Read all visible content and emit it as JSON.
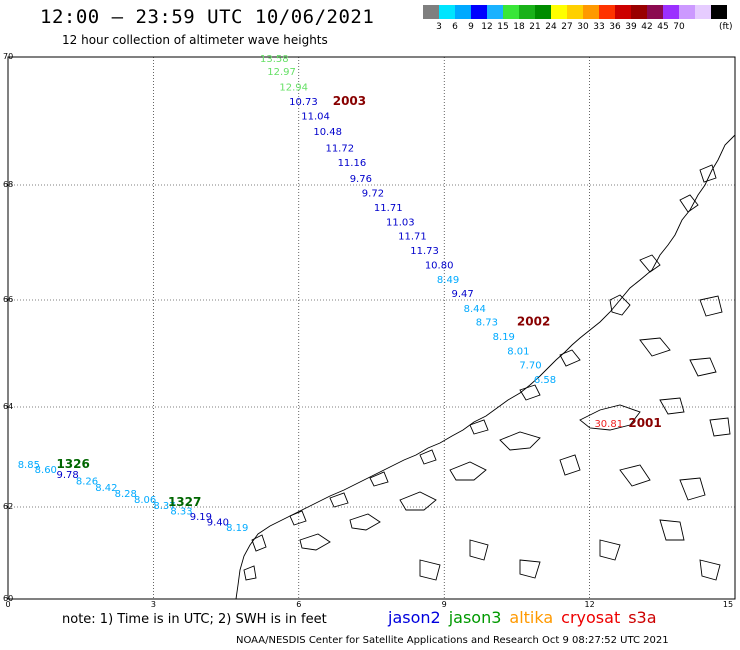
{
  "header": {
    "title": "12:00 – 23:59 UTC 10/06/2021",
    "subtitle": "12 hour collection of altimeter wave heights"
  },
  "colorbar": {
    "colors": [
      "#7f7f7f",
      "#00e5ff",
      "#00a9ff",
      "#0000ff",
      "#1ab2ff",
      "#39e639",
      "#19b219",
      "#008c00",
      "#ffff00",
      "#ffd000",
      "#ff9900",
      "#ff3300",
      "#cc0000",
      "#990000",
      "#8b0a50",
      "#9b30ff",
      "#cc99ff",
      "#e6ccff",
      "#000000"
    ],
    "labels": [
      "3",
      "6",
      "9",
      "12",
      "15",
      "18",
      "21",
      "24",
      "27",
      "30",
      "33",
      "36",
      "39",
      "42",
      "45",
      "70"
    ],
    "unit": "(ft)"
  },
  "map": {
    "lon_range": [
      0,
      15
    ],
    "lat_range": [
      60,
      70
    ],
    "y_ticks": [
      "70",
      "68",
      "66",
      "64",
      "62",
      "60"
    ],
    "x_ticks": [
      "0",
      "3",
      "6",
      "9",
      "12",
      "15"
    ],
    "observations": [
      {
        "lon": 5.2,
        "lat": 69.92,
        "value": "13.58",
        "color": "#66e066"
      },
      {
        "lon": 5.35,
        "lat": 69.72,
        "value": "12.97",
        "color": "#66e066"
      },
      {
        "lon": 5.6,
        "lat": 69.48,
        "value": "12.94",
        "color": "#66e066"
      },
      {
        "lon": 5.8,
        "lat": 69.25,
        "value": "10.73",
        "color": "#0000cc"
      },
      {
        "lon": 6.05,
        "lat": 69.02,
        "value": "11.04",
        "color": "#0000cc"
      },
      {
        "lon": 6.3,
        "lat": 68.78,
        "value": "10.48",
        "color": "#0000cc"
      },
      {
        "lon": 6.55,
        "lat": 68.52,
        "value": "11.72",
        "color": "#0000cc"
      },
      {
        "lon": 6.8,
        "lat": 68.3,
        "value": "11.16",
        "color": "#0000cc"
      },
      {
        "lon": 7.05,
        "lat": 68.05,
        "value": "9.76",
        "color": "#0000cc"
      },
      {
        "lon": 7.3,
        "lat": 67.8,
        "value": "9.72",
        "color": "#0000cc"
      },
      {
        "lon": 7.55,
        "lat": 67.55,
        "value": "11.71",
        "color": "#0000cc"
      },
      {
        "lon": 7.8,
        "lat": 67.3,
        "value": "11.03",
        "color": "#0000cc"
      },
      {
        "lon": 8.05,
        "lat": 67.05,
        "value": "11.71",
        "color": "#0000cc"
      },
      {
        "lon": 8.3,
        "lat": 66.8,
        "value": "11.73",
        "color": "#0000cc"
      },
      {
        "lon": 8.6,
        "lat": 66.55,
        "value": "10.80",
        "color": "#0000cc"
      },
      {
        "lon": 8.85,
        "lat": 66.3,
        "value": "8.49",
        "color": "#00aaff"
      },
      {
        "lon": 9.15,
        "lat": 66.05,
        "value": "9.47",
        "color": "#0000cc"
      },
      {
        "lon": 9.4,
        "lat": 65.78,
        "value": "8.44",
        "color": "#00aaff"
      },
      {
        "lon": 9.65,
        "lat": 65.52,
        "value": "8.73",
        "color": "#00aaff"
      },
      {
        "lon": 10.0,
        "lat": 65.25,
        "value": "8.19",
        "color": "#00aaff"
      },
      {
        "lon": 10.3,
        "lat": 64.98,
        "value": "8.01",
        "color": "#00aaff"
      },
      {
        "lon": 10.55,
        "lat": 64.72,
        "value": "7.70",
        "color": "#00aaff"
      },
      {
        "lon": 10.85,
        "lat": 64.45,
        "value": "6.58",
        "color": "#00aaff"
      },
      {
        "lon": 12.1,
        "lat": 63.6,
        "value": "30.81",
        "color": "#ee2222"
      },
      {
        "lon": 0.2,
        "lat": 62.78,
        "value": "8.85",
        "color": "#00aaff"
      },
      {
        "lon": 0.55,
        "lat": 62.68,
        "value": "8.60",
        "color": "#00aaff"
      },
      {
        "lon": 1.0,
        "lat": 62.58,
        "value": "9.78",
        "color": "#0000cc"
      },
      {
        "lon": 1.4,
        "lat": 62.45,
        "value": "8.26",
        "color": "#00aaff"
      },
      {
        "lon": 1.8,
        "lat": 62.32,
        "value": "8.42",
        "color": "#00aaff"
      },
      {
        "lon": 2.2,
        "lat": 62.2,
        "value": "8.28",
        "color": "#00aaff"
      },
      {
        "lon": 2.6,
        "lat": 62.08,
        "value": "8.06",
        "color": "#00aaff"
      },
      {
        "lon": 3.0,
        "lat": 61.96,
        "value": "8.37",
        "color": "#00aaff"
      },
      {
        "lon": 3.35,
        "lat": 61.84,
        "value": "8.33",
        "color": "#00aaff"
      },
      {
        "lon": 3.75,
        "lat": 61.72,
        "value": "9.19",
        "color": "#0000cc"
      },
      {
        "lon": 4.1,
        "lat": 61.6,
        "value": "9.40",
        "color": "#0000cc"
      },
      {
        "lon": 4.5,
        "lat": 61.48,
        "value": "8.19",
        "color": "#00aaff"
      }
    ],
    "time_labels": [
      {
        "lon": 6.7,
        "lat": 69.25,
        "value": "2003",
        "color": "#880000"
      },
      {
        "lon": 10.5,
        "lat": 65.52,
        "value": "2002",
        "color": "#880000"
      },
      {
        "lon": 12.8,
        "lat": 63.6,
        "value": "2001",
        "color": "#880000"
      },
      {
        "lon": 1.0,
        "lat": 62.78,
        "value": "1326",
        "color": "#006600"
      },
      {
        "lon": 3.3,
        "lat": 62.02,
        "value": "1327",
        "color": "#006600"
      }
    ]
  },
  "footer": {
    "note": "note:  1) Time is in UTC;  2) SWH is in feet",
    "legend": [
      {
        "name": "jason2",
        "color": "#0000dd"
      },
      {
        "name": "jason3",
        "color": "#009900"
      },
      {
        "name": "altika",
        "color": "#ff9900"
      },
      {
        "name": "cryosat",
        "color": "#ee0000"
      },
      {
        "name": "s3a",
        "color": "#cc0000"
      }
    ],
    "credit": "NOAA/NESDIS Center for Satellite Applications and Research     Oct  9 08:27:52 UTC 2021"
  }
}
